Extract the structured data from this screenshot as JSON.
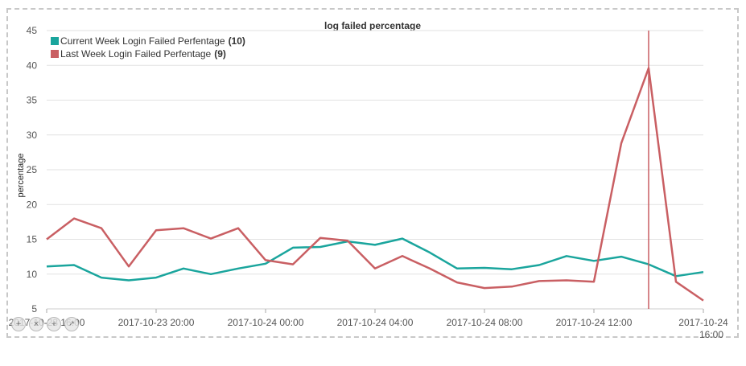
{
  "chart_data": {
    "type": "line",
    "title": "log failed percentage",
    "ylabel": "percentage",
    "xlabel": "",
    "ylim": [
      5,
      45
    ],
    "yticks": [
      5,
      10,
      15,
      20,
      25,
      30,
      35,
      40,
      45
    ],
    "xtick_labels": [
      {
        "label": "2017-10-23 16:00",
        "index": 0
      },
      {
        "label": "2017-10-23 20:00",
        "index": 4
      },
      {
        "label": "2017-10-24 00:00",
        "index": 8
      },
      {
        "label": "2017-10-24 04:00",
        "index": 12
      },
      {
        "label": "2017-10-24 08:00",
        "index": 16
      },
      {
        "label": "2017-10-24 12:00",
        "index": 20
      },
      {
        "label": "2017-10-24 16:00",
        "index": 24
      }
    ],
    "x": [
      "2017-10-23 16:00",
      "2017-10-23 17:00",
      "2017-10-23 18:00",
      "2017-10-23 19:00",
      "2017-10-23 20:00",
      "2017-10-23 21:00",
      "2017-10-23 22:00",
      "2017-10-23 23:00",
      "2017-10-24 00:00",
      "2017-10-24 01:00",
      "2017-10-24 02:00",
      "2017-10-24 03:00",
      "2017-10-24 04:00",
      "2017-10-24 05:00",
      "2017-10-24 06:00",
      "2017-10-24 07:00",
      "2017-10-24 08:00",
      "2017-10-24 09:00",
      "2017-10-24 10:00",
      "2017-10-24 11:00",
      "2017-10-24 12:00",
      "2017-10-24 13:00",
      "2017-10-24 14:00",
      "2017-10-24 15:00",
      "2017-10-24 16:00"
    ],
    "series": [
      {
        "name": "Current Week Login Failed Perfentage",
        "count": "(10)",
        "color": "#1aa59d",
        "values": [
          11.1,
          11.3,
          9.5,
          9.1,
          9.5,
          10.8,
          10.0,
          10.8,
          11.5,
          13.8,
          13.9,
          14.7,
          14.2,
          15.1,
          13.1,
          10.8,
          10.9,
          10.7,
          11.3,
          12.6,
          11.9,
          12.5,
          11.4,
          9.7,
          10.3
        ]
      },
      {
        "name": "Last Week Login Failed Perfentage",
        "count": "(9)",
        "color": "#c95f63",
        "values": [
          15.0,
          18.0,
          16.6,
          11.1,
          16.3,
          16.6,
          15.1,
          16.6,
          12.0,
          11.4,
          15.2,
          14.8,
          10.8,
          12.6,
          10.8,
          8.8,
          8.0,
          8.2,
          9.0,
          9.1,
          8.9,
          28.8,
          39.6,
          8.9,
          6.2
        ]
      }
    ],
    "marker_x_index": 22.0,
    "marker_color": "#c95f63",
    "grid": true,
    "legend_position": "top-left"
  },
  "zoom_controls": [
    {
      "name": "zoom-in-button",
      "glyph": "+"
    },
    {
      "name": "zoom-out-button",
      "glyph": "×"
    },
    {
      "name": "pan-button",
      "glyph": "+"
    },
    {
      "name": "reset-zoom-button",
      "glyph": "↗"
    }
  ]
}
